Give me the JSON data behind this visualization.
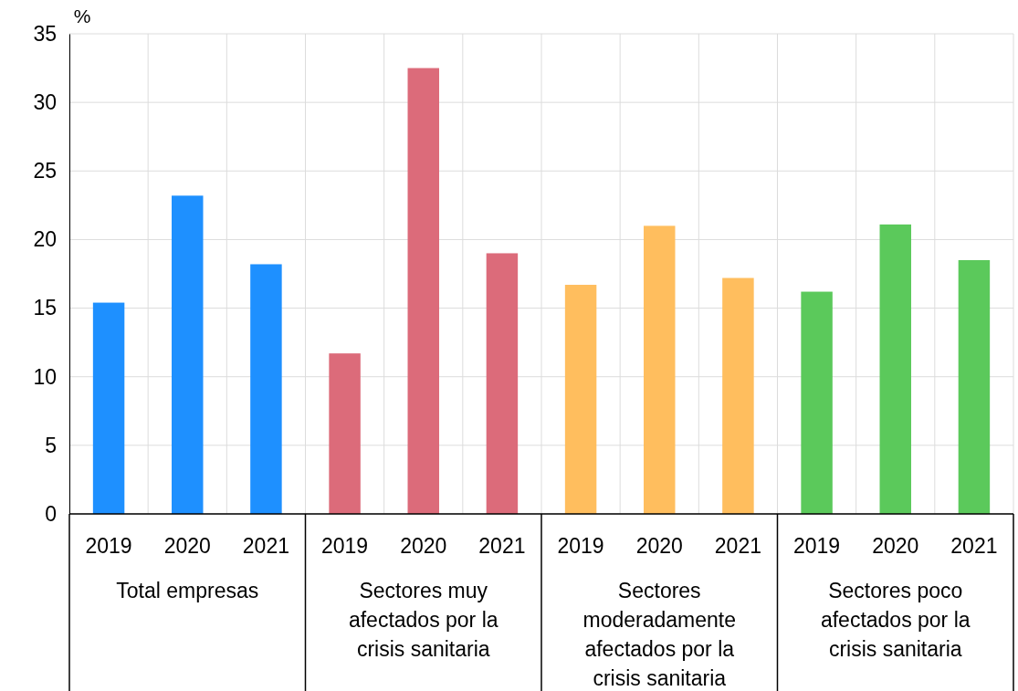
{
  "chart_data": {
    "type": "bar",
    "ylabel": "%",
    "categories": [
      "2019",
      "2020",
      "2021",
      "2019",
      "2020",
      "2021",
      "2019",
      "2020",
      "2021",
      "2019",
      "2020",
      "2021"
    ],
    "values": [
      15.4,
      23.2,
      18.2,
      11.7,
      32.5,
      19.0,
      16.7,
      21.0,
      17.2,
      16.2,
      21.1,
      18.5
    ],
    "colors": [
      "#1e90ff",
      "#1e90ff",
      "#1e90ff",
      "#dc6b7a",
      "#dc6b7a",
      "#dc6b7a",
      "#ffbe5e",
      "#ffbe5e",
      "#ffbe5e",
      "#5bc95b",
      "#5bc95b",
      "#5bc95b"
    ],
    "annotations": [
      "Total empresas",
      "Sectores muy afectados por la crisis sanitaria",
      "Sectores moderadamente afectados por la crisis sanitaria",
      "Sectores poco afectados por la crisis sanitaria"
    ],
    "ylim": [
      0,
      35
    ],
    "yticks": [
      0,
      5,
      10,
      15,
      20,
      25,
      30,
      35
    ],
    "grid": true
  }
}
